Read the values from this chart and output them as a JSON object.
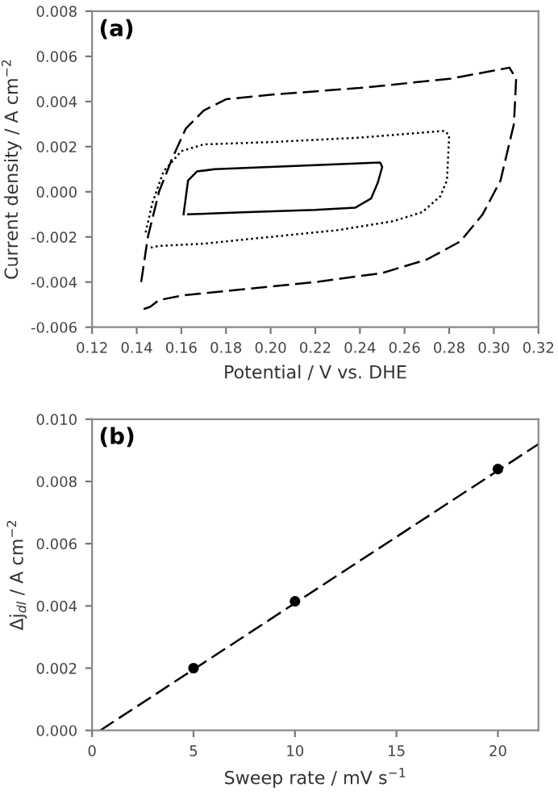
{
  "chart_data": [
    {
      "type": "line",
      "annotations": [
        "(a)"
      ],
      "xlabel": "Potential / V vs. DHE",
      "ylabel": "Current density / A cm$^{−2}$",
      "xlim": [
        0.12,
        0.32
      ],
      "ylim": [
        -0.006,
        0.008
      ],
      "xticks": [
        {
          "value": 0.12,
          "label": "0.12"
        },
        {
          "value": 0.14,
          "label": "0.14"
        },
        {
          "value": 0.16,
          "label": "0.16"
        },
        {
          "value": 0.18,
          "label": "0.18"
        },
        {
          "value": 0.2,
          "label": "0.20"
        },
        {
          "value": 0.22,
          "label": "0.22"
        },
        {
          "value": 0.24,
          "label": "0.24"
        },
        {
          "value": 0.26,
          "label": "0.26"
        },
        {
          "value": 0.28,
          "label": "0.28"
        },
        {
          "value": 0.3,
          "label": "0.30"
        },
        {
          "value": 0.32,
          "label": "0.32"
        }
      ],
      "yticks": [
        {
          "value": -0.006,
          "label": "-0.006"
        },
        {
          "value": -0.004,
          "label": "-0.004"
        },
        {
          "value": -0.002,
          "label": "-0.002"
        },
        {
          "value": 0,
          "label": "0.000"
        },
        {
          "value": 0.002,
          "label": "0.002"
        },
        {
          "value": 0.004,
          "label": "0.004"
        },
        {
          "value": 0.006,
          "label": "0.006"
        },
        {
          "value": 0.008,
          "label": "0.008"
        }
      ],
      "grid": false,
      "marker": "none",
      "series": [
        {
          "color": "#000000",
          "line_style": "solid",
          "x": [
            0.161,
            0.163,
            0.167,
            0.175,
            0.2,
            0.249,
            0.25,
            0.248,
            0.245,
            0.238,
            0.22,
            0.19,
            0.163
          ],
          "values": [
            -0.001,
            0.0005,
            0.0009,
            0.001,
            0.0011,
            0.0013,
            0.0011,
            0.0004,
            -0.0003,
            -0.0007,
            -0.0008,
            -0.0009,
            -0.001
          ]
        },
        {
          "color": "#000000",
          "line_style": "dotted",
          "x": [
            0.144,
            0.147,
            0.152,
            0.16,
            0.17,
            0.2,
            0.24,
            0.278,
            0.28,
            0.279,
            0.276,
            0.268,
            0.255,
            0.23,
            0.2,
            0.17,
            0.15,
            0.145
          ],
          "values": [
            -0.0018,
            -0.0005,
            0.0009,
            0.0018,
            0.0021,
            0.0022,
            0.0024,
            0.0027,
            0.0025,
            0.0005,
            -0.0002,
            -0.0009,
            -0.0013,
            -0.0017,
            -0.002,
            -0.0023,
            -0.0024,
            -0.0025
          ]
        },
        {
          "color": "#000000",
          "line_style": "dashed",
          "x": [
            0.142,
            0.145,
            0.15,
            0.156,
            0.162,
            0.17,
            0.18,
            0.2,
            0.24,
            0.28,
            0.307,
            0.31,
            0.309,
            0.303,
            0.295,
            0.285,
            0.27,
            0.25,
            0.22,
            0.19,
            0.16,
            0.15,
            0.146,
            0.143
          ],
          "values": [
            -0.004,
            -0.002,
            0.0,
            0.0015,
            0.0028,
            0.0036,
            0.0041,
            0.0043,
            0.0046,
            0.005,
            0.0055,
            0.005,
            0.003,
            0.0005,
            -0.001,
            -0.0022,
            -0.003,
            -0.0036,
            -0.004,
            -0.0043,
            -0.0046,
            -0.0048,
            -0.0051,
            -0.0052
          ]
        }
      ]
    },
    {
      "type": "scatter",
      "annotations": [
        "(b)"
      ],
      "xlabel": "Sweep rate / mV s$^{−1}$",
      "ylabel": "Δj$_{dl}$ / A cm$^{−2}$",
      "xlim": [
        0,
        22
      ],
      "ylim": [
        0,
        0.01
      ],
      "xticks": [
        0,
        5,
        10,
        15,
        20
      ],
      "yticks": [
        {
          "value": 0,
          "label": "0.000"
        },
        {
          "value": 0.002,
          "label": "0.002"
        },
        {
          "value": 0.004,
          "label": "0.004"
        },
        {
          "value": 0.006,
          "label": "0.006"
        },
        {
          "value": 0.008,
          "label": "0.008"
        },
        {
          "value": 0.01,
          "label": "0.010"
        }
      ],
      "grid": false,
      "series": [
        {
          "color": "#000000",
          "marker": "circle",
          "x": [
            5,
            10,
            20
          ],
          "values": [
            0.002,
            0.00415,
            0.0084
          ]
        },
        {
          "type": "line",
          "color": "#000000",
          "line_style": "dashed",
          "marker": "none",
          "x": [
            0.4,
            22
          ],
          "values": [
            0,
            0.0092
          ]
        }
      ]
    }
  ]
}
